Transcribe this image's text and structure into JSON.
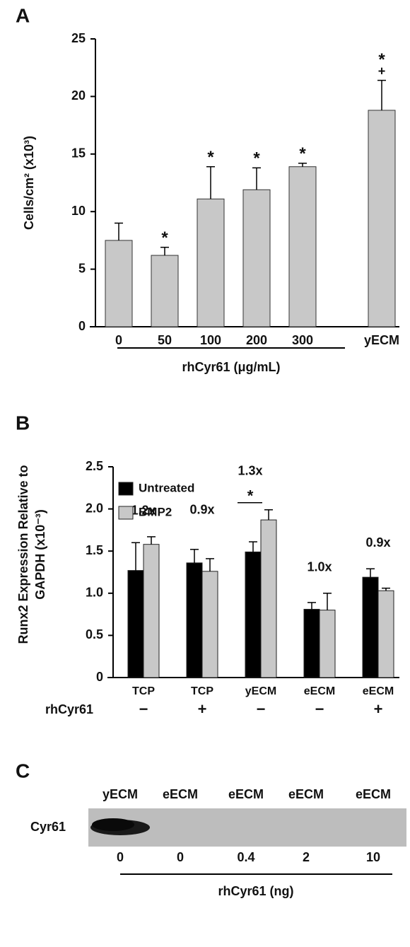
{
  "chart_data": [
    {
      "type": "bar",
      "panel": "A",
      "ylabel": "Cells/cm² (x10³)",
      "categories": [
        "0",
        "50",
        "100",
        "200",
        "300",
        "yECM"
      ],
      "values": [
        7.5,
        6.2,
        11.1,
        11.9,
        13.9,
        18.8
      ],
      "errors": [
        1.5,
        0.7,
        2.8,
        1.9,
        0.3,
        2.6
      ],
      "star_labels": [
        null,
        "*",
        "*",
        "*",
        "*",
        "*"
      ],
      "plus_labels": [
        null,
        null,
        null,
        null,
        null,
        "+"
      ],
      "group_label": "rhCyr61 (μg/mL)",
      "color": "#c8c8c8",
      "ylim": [
        0,
        25
      ],
      "yticks": [
        0,
        5,
        10,
        15,
        20,
        25
      ],
      "grid": false
    },
    {
      "type": "grouped_bar",
      "panel": "B",
      "ylabel": [
        "Runx2 Expression Relative to",
        "GAPDH (x10⁻³)"
      ],
      "categories": [
        "TCP",
        "TCP",
        "yECM",
        "eECM",
        "eECM"
      ],
      "series": [
        {
          "name": "Untreated",
          "color": "#000000",
          "values": [
            1.27,
            1.36,
            1.49,
            0.81,
            1.19
          ],
          "errors": [
            0.33,
            0.16,
            0.12,
            0.08,
            0.1
          ]
        },
        {
          "name": "BMP2",
          "color": "#c8c8c8",
          "values": [
            1.58,
            1.26,
            1.87,
            0.8,
            1.03
          ],
          "errors": [
            0.09,
            0.15,
            0.12,
            0.2,
            0.03
          ]
        }
      ],
      "fold_labels": [
        "1.2x",
        "0.9x",
        "1.3x",
        "1.0x",
        "0.9x"
      ],
      "star_labels": [
        null,
        null,
        "*",
        null,
        null
      ],
      "treatment_label": "rhCyr61",
      "treatment": [
        "−",
        "+",
        "−",
        "−",
        "+"
      ],
      "legend": "top-left",
      "ylim": [
        0,
        2.5
      ],
      "yticks": [
        0,
        0.5,
        {
          "value": 1,
          "label": "1.0"
        },
        1.5,
        {
          "value": 2,
          "label": "2.0"
        },
        2.5
      ],
      "grid": false
    }
  ],
  "blot": {
    "panel": "C",
    "protein": "Cyr61",
    "lanes": [
      "yECM",
      "eECM",
      "eECM",
      "eECM",
      "eECM"
    ],
    "amounts": [
      0,
      0,
      0.4,
      2,
      10
    ],
    "amount_label": "rhCyr61 (ng)"
  }
}
